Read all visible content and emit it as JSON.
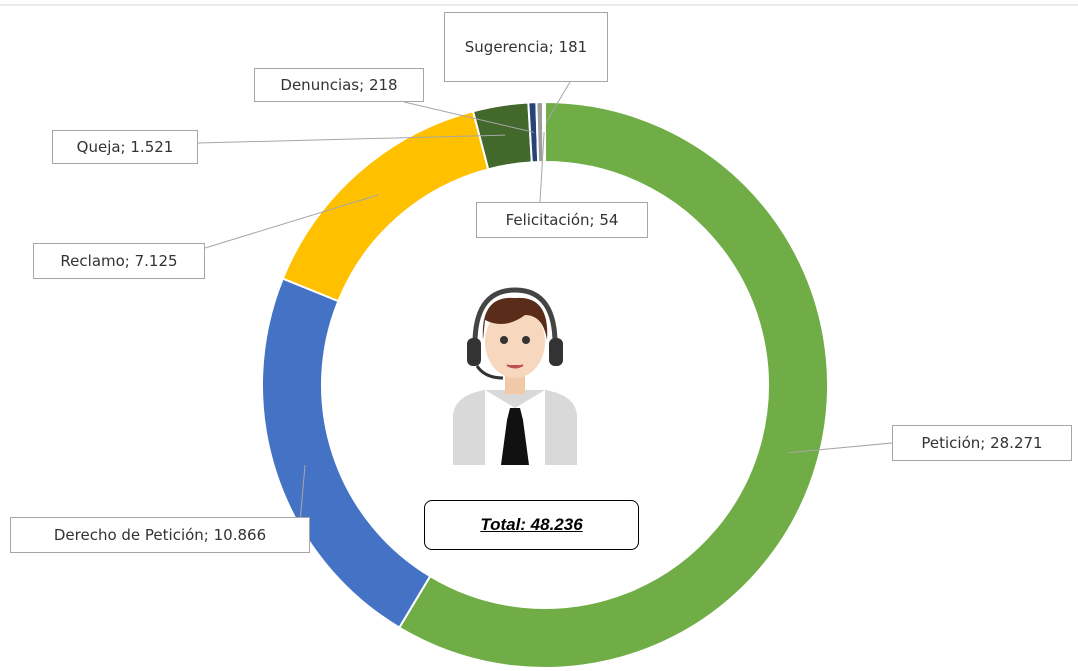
{
  "chart_data": {
    "type": "donut",
    "center_label": "Total: 48.236",
    "values": [
      28271,
      10866,
      7125,
      1521,
      218,
      181,
      54
    ],
    "value_labels": [
      "Petición; 28.271",
      "Derecho de Petición; 10.866",
      "Reclamo; 7.125",
      "Queja; 1.521",
      "Denuncias; 218",
      "Sugerencia; 181",
      "Felicitación; 54"
    ],
    "colors": [
      "#70ad47",
      "#4472c4",
      "#ffc000",
      "#43682b",
      "#264478",
      "#9e9e9e",
      "#255e91"
    ]
  }
}
